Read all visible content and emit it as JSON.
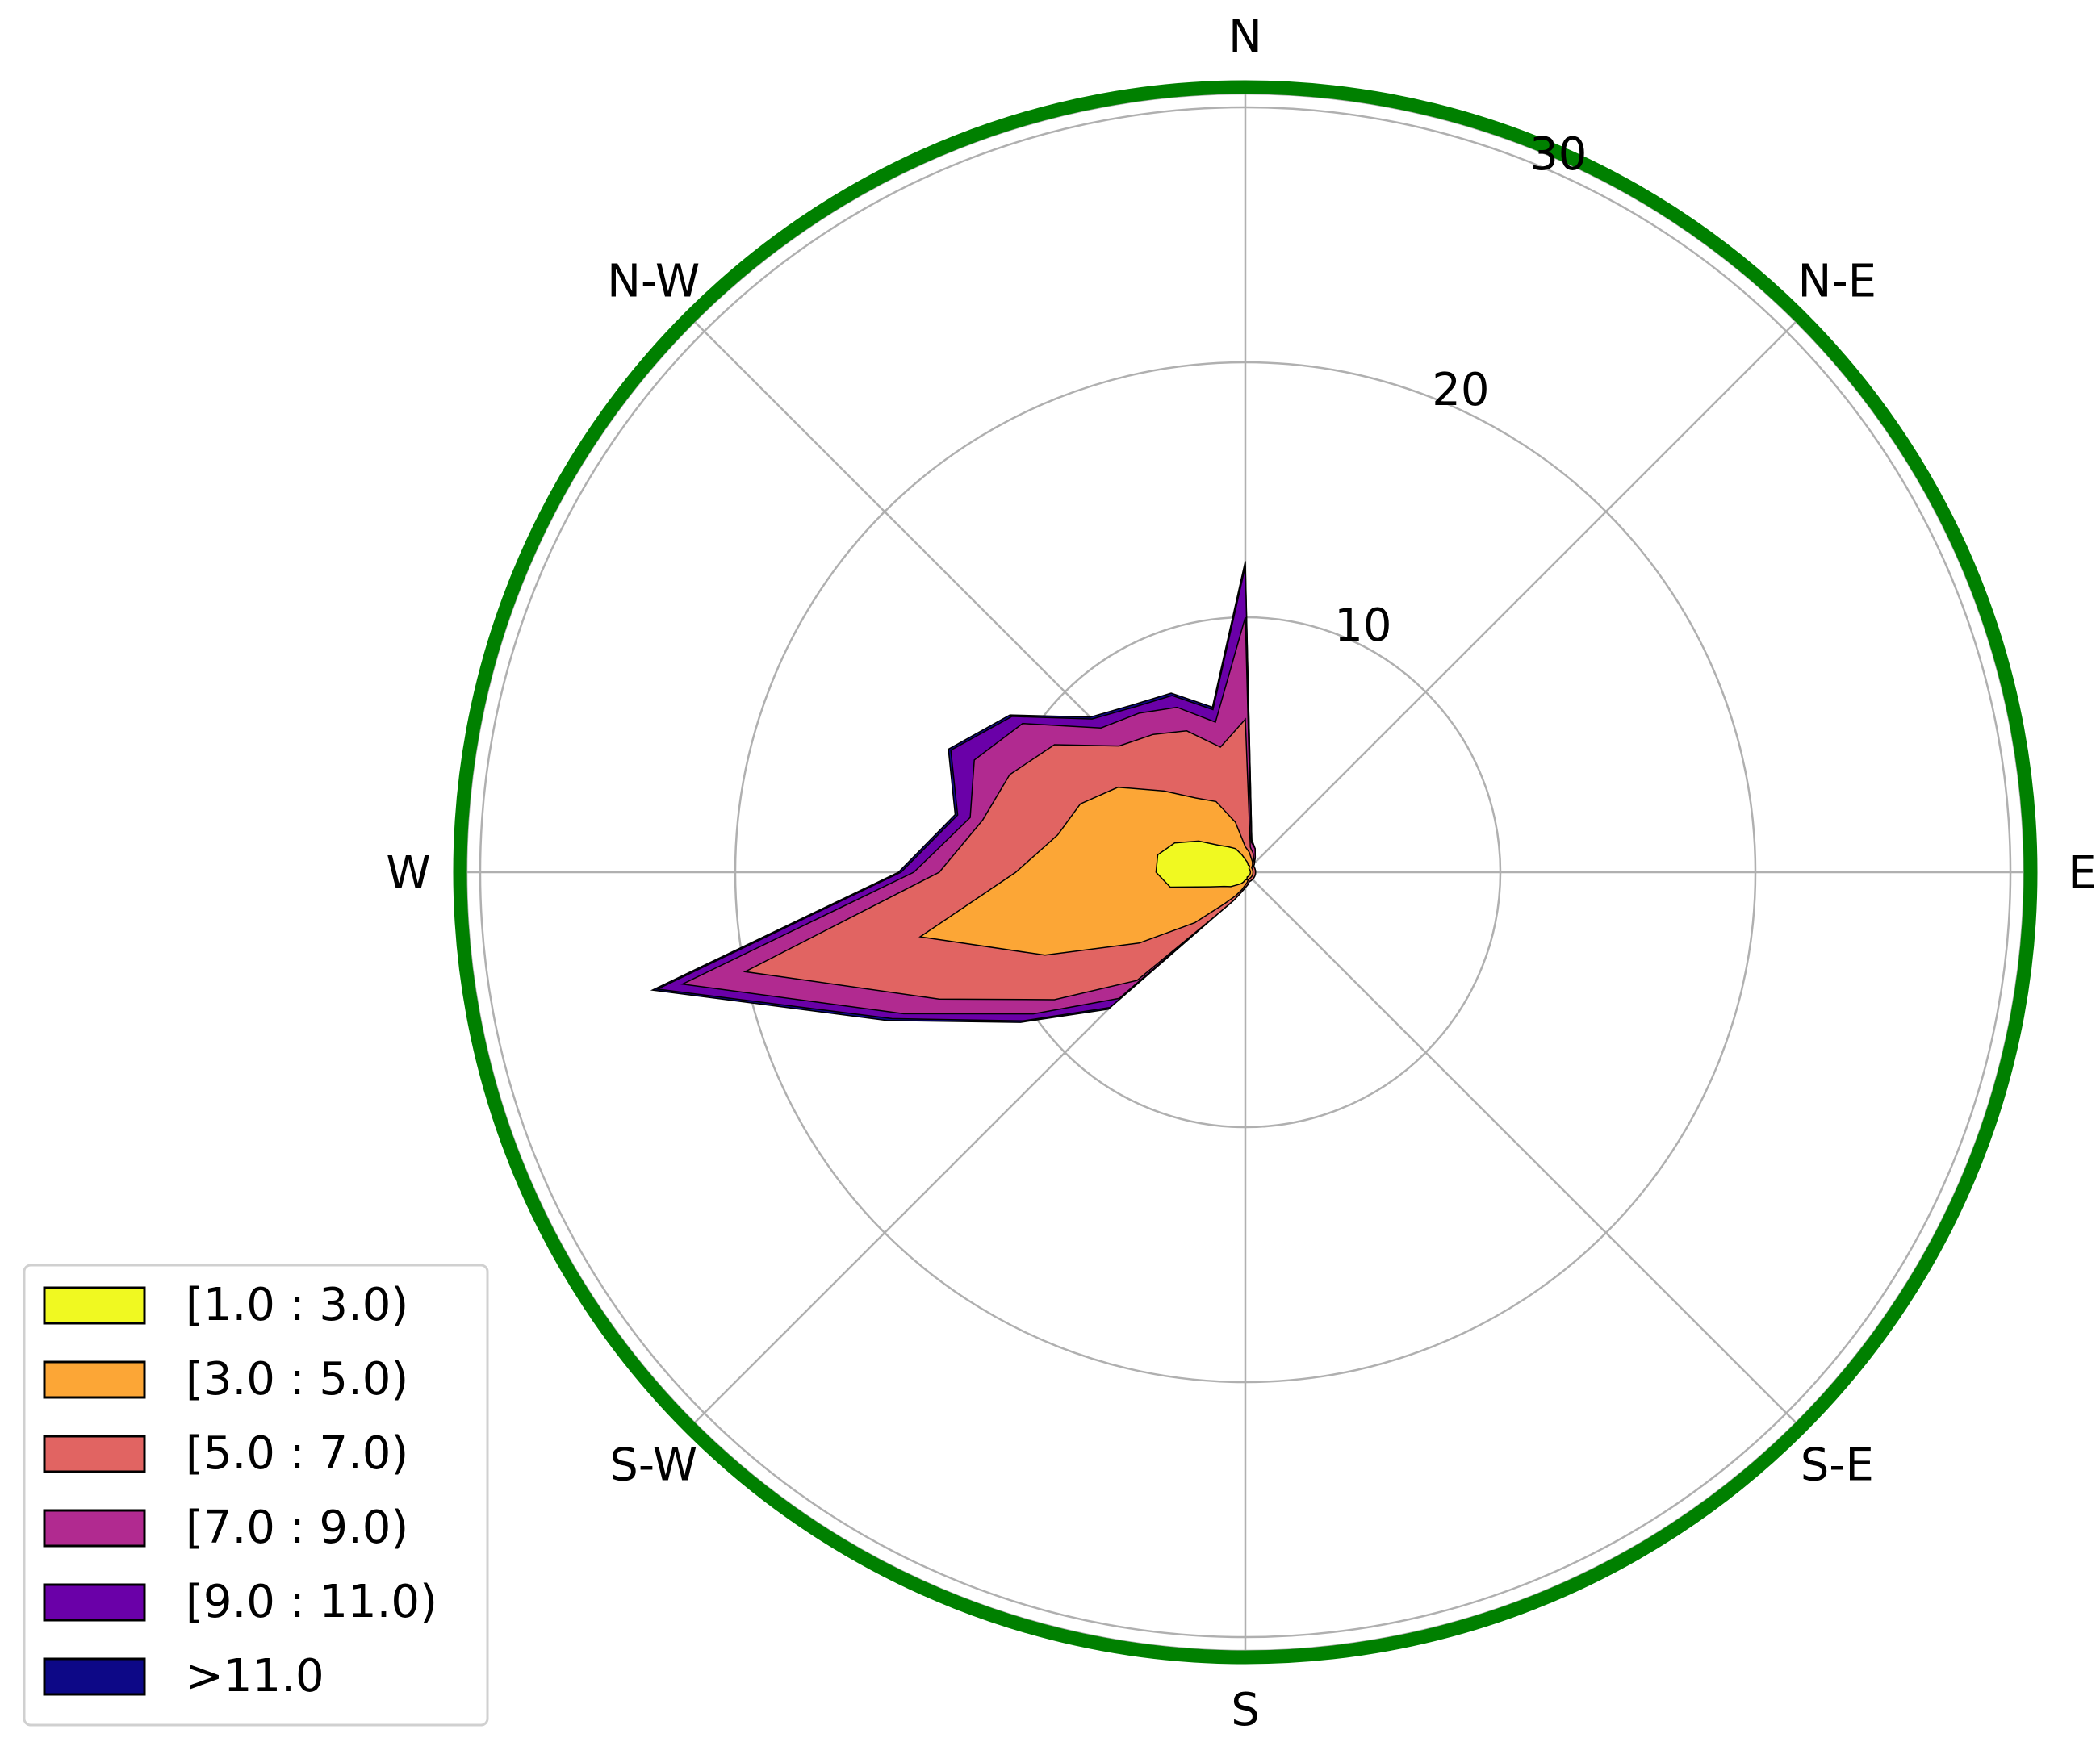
{
  "chart_data": {
    "type": "windrose",
    "directions": [
      "N",
      "N-E",
      "E",
      "S-E",
      "S",
      "S-W",
      "W",
      "N-W"
    ],
    "angle_step_deg": 11.25,
    "rlabels": [
      "10",
      "20",
      "30"
    ],
    "rticks": [
      10,
      20,
      30
    ],
    "rmax": 30.6,
    "grid": true,
    "legend_position": "lower-left",
    "colors": {
      "frame": "#008000",
      "grid": "#b0b0b0",
      "edge": "#000000"
    },
    "series": [
      {
        "name": "[1.0 : 3.0)",
        "color": "#f0f921",
        "values": [
          0.5,
          0.4,
          0.3,
          0.3,
          0.2,
          0.2,
          0.2,
          0.2,
          0.2,
          0.2,
          0.2,
          0.2,
          0.2,
          0.2,
          0.2,
          0.3,
          0.3,
          0.4,
          0.5,
          0.6,
          0.8,
          1.0,
          1.5,
          3.0,
          3.5,
          3.5,
          3.0,
          2.2,
          1.5,
          1.2,
          1.0,
          0.7
        ]
      },
      {
        "name": "[3.0 : 5.0)",
        "color": "#fca636",
        "values": [
          1.0,
          0.8,
          0.6,
          0.5,
          0.4,
          0.3,
          0.3,
          0.3,
          0.3,
          0.3,
          0.3,
          0.3,
          0.3,
          0.3,
          0.3,
          0.4,
          0.5,
          0.7,
          1.0,
          1.5,
          2.8,
          5.0,
          8.5,
          13.0,
          9.0,
          7.5,
          7.0,
          6.0,
          4.5,
          3.5,
          3.0,
          2.0
        ]
      },
      {
        "name": "[5.0 : 7.0)",
        "color": "#e16462",
        "values": [
          6.0,
          1.0,
          0.8,
          0.6,
          0.5,
          0.4,
          0.4,
          0.4,
          0.4,
          0.4,
          0.4,
          0.4,
          0.4,
          0.4,
          0.4,
          0.5,
          0.6,
          0.8,
          1.2,
          2.0,
          6.0,
          9.0,
          13.0,
          20.0,
          12.0,
          10.5,
          10.0,
          9.0,
          7.0,
          6.5,
          6.0,
          5.0
        ]
      },
      {
        "name": "[7.0 : 9.0)",
        "color": "#b12a90",
        "values": [
          10.0,
          1.2,
          1.0,
          0.7,
          0.5,
          0.4,
          0.4,
          0.4,
          0.4,
          0.4,
          0.4,
          0.4,
          0.4,
          0.4,
          0.4,
          0.5,
          0.6,
          0.8,
          1.2,
          2.0,
          7.0,
          10.0,
          14.5,
          22.5,
          13.0,
          11.0,
          11.5,
          10.5,
          8.0,
          7.5,
          7.0,
          6.0
        ]
      },
      {
        "name": "[9.0 : 11.0)",
        "color": "#6a00a8",
        "values": [
          12.0,
          1.3,
          1.0,
          0.7,
          0.5,
          0.4,
          0.4,
          0.4,
          0.4,
          0.4,
          0.4,
          0.4,
          0.4,
          0.4,
          0.4,
          0.5,
          0.6,
          0.8,
          1.2,
          2.0,
          7.5,
          10.5,
          15.0,
          23.5,
          13.5,
          11.5,
          12.5,
          11.0,
          8.5,
          7.8,
          7.5,
          6.5
        ]
      },
      {
        "name": ">11.0",
        "color": "#0d0887",
        "values": [
          12.2,
          1.3,
          1.0,
          0.7,
          0.5,
          0.4,
          0.4,
          0.4,
          0.4,
          0.4,
          0.4,
          0.4,
          0.4,
          0.4,
          0.4,
          0.5,
          0.6,
          0.8,
          1.2,
          2.0,
          7.6,
          10.6,
          15.2,
          23.7,
          13.6,
          11.6,
          12.6,
          11.1,
          8.6,
          7.9,
          7.6,
          6.6
        ]
      }
    ]
  }
}
